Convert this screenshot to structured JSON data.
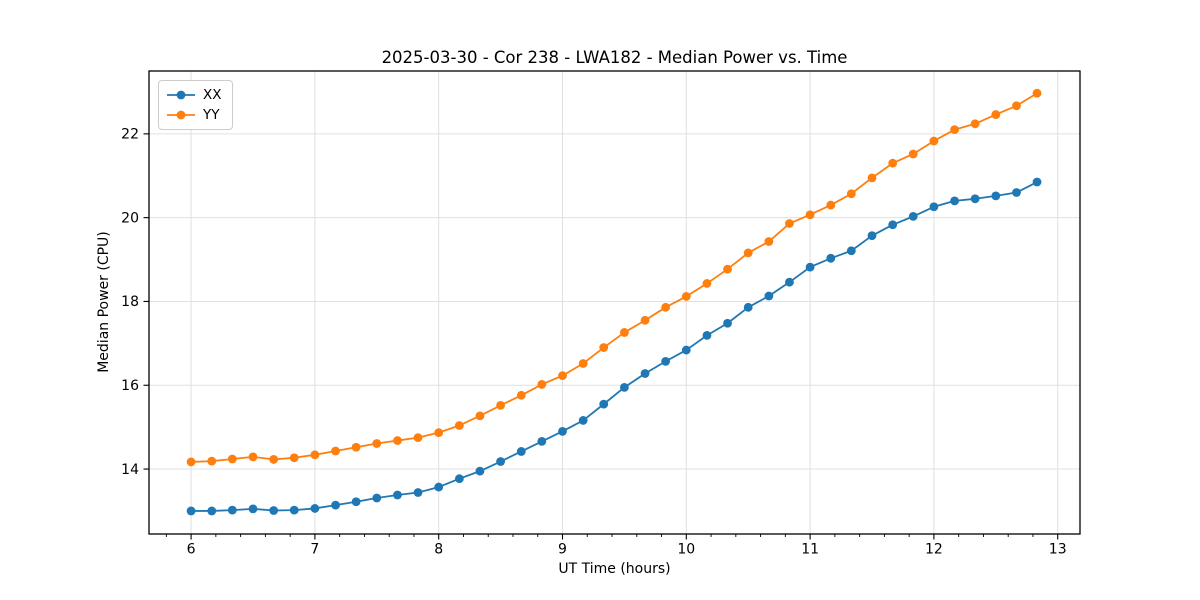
{
  "title": "2025-03-30 - Cor 238 - LWA182 - Median Power vs. Time",
  "colors": {
    "series_xx": "#1f77b4",
    "series_yy": "#ff7f0e",
    "grid": "#e0e0e0",
    "axis": "#000000",
    "text": "#000000",
    "background": "#ffffff",
    "legend_border": "#cccccc"
  },
  "chart_data": {
    "type": "line",
    "title": "2025-03-30 - Cor 238 - LWA182 - Median Power vs. Time",
    "xlabel": "UT Time (hours)",
    "ylabel": "Median Power (CPU)",
    "xlim": [
      5.66,
      13.18
    ],
    "ylim": [
      12.45,
      23.5
    ],
    "xticks": [
      6,
      7,
      8,
      9,
      10,
      11,
      12,
      13
    ],
    "yticks": [
      14,
      16,
      18,
      20,
      22
    ],
    "x_minor_step": 0.2,
    "grid": true,
    "legend_position": "upper-left",
    "marker": "circle",
    "x": [
      6.0,
      6.167,
      6.333,
      6.5,
      6.667,
      6.833,
      7.0,
      7.167,
      7.333,
      7.5,
      7.667,
      7.833,
      8.0,
      8.167,
      8.333,
      8.5,
      8.667,
      8.833,
      9.0,
      9.167,
      9.333,
      9.5,
      9.667,
      9.833,
      10.0,
      10.167,
      10.333,
      10.5,
      10.667,
      10.833,
      11.0,
      11.167,
      11.333,
      11.5,
      11.667,
      11.833,
      12.0,
      12.167,
      12.333,
      12.5,
      12.667,
      12.833
    ],
    "series": [
      {
        "name": "XX",
        "color": "#1f77b4",
        "values": [
          13.0,
          13.0,
          13.02,
          13.05,
          13.01,
          13.02,
          13.06,
          13.14,
          13.22,
          13.31,
          13.38,
          13.44,
          13.57,
          13.77,
          13.95,
          14.18,
          14.42,
          14.66,
          14.9,
          15.16,
          15.55,
          15.95,
          16.28,
          16.57,
          16.84,
          17.19,
          17.48,
          17.86,
          18.13,
          18.46,
          18.82,
          19.03,
          19.21,
          19.57,
          19.83,
          20.03,
          20.26,
          20.4,
          20.45,
          20.52,
          20.6,
          20.85
        ]
      },
      {
        "name": "YY",
        "color": "#ff7f0e",
        "values": [
          14.17,
          14.19,
          14.24,
          14.29,
          14.23,
          14.27,
          14.34,
          14.43,
          14.52,
          14.61,
          14.68,
          14.75,
          14.87,
          15.04,
          15.27,
          15.52,
          15.76,
          16.02,
          16.23,
          16.52,
          16.9,
          17.26,
          17.55,
          17.86,
          18.12,
          18.43,
          18.77,
          19.16,
          19.43,
          19.86,
          20.07,
          20.3,
          20.57,
          20.95,
          21.3,
          21.52,
          21.83,
          22.1,
          22.24,
          22.46,
          22.67,
          22.97
        ]
      }
    ]
  }
}
